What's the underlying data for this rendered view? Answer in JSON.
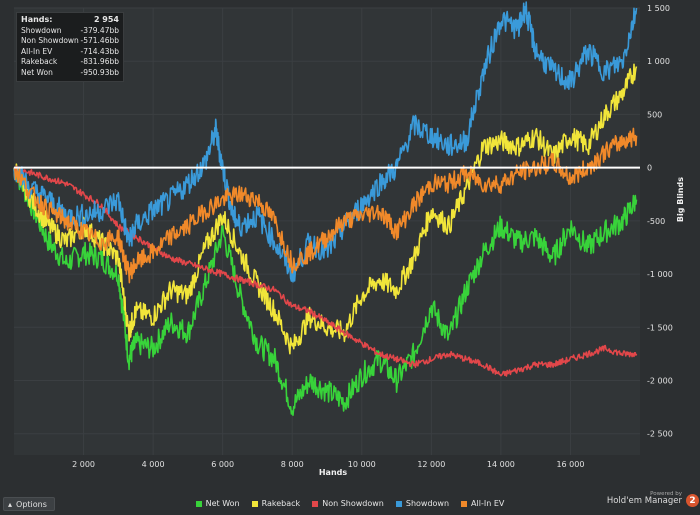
{
  "stats": {
    "hands_label": "Hands:",
    "hands_value": "2 954",
    "rows": [
      {
        "label": "Showdown",
        "value": "-379.47bb"
      },
      {
        "label": "Non Showdown",
        "value": "-571.46bb"
      },
      {
        "label": "All-In EV",
        "value": "-714.43bb"
      },
      {
        "label": "Rakeback",
        "value": "-831.96bb"
      },
      {
        "label": "Net Won",
        "value": "-950.93bb"
      }
    ]
  },
  "footer": {
    "options_label": "Options",
    "powered_by": "Powered by",
    "brand_name": "Hold'em Manager",
    "brand_logo_text": "2"
  },
  "chart_data": {
    "type": "line",
    "xlabel": "Hands",
    "ylabel": "Big Blinds",
    "xlim": [
      0,
      18000
    ],
    "ylim": [
      -2700,
      1500
    ],
    "x_ticks": [
      2000,
      4000,
      6000,
      8000,
      10000,
      12000,
      14000,
      16000
    ],
    "x_tick_labels": [
      "2 000",
      "4 000",
      "6 000",
      "8 000",
      "10 000",
      "12 000",
      "14 000",
      "16 000"
    ],
    "y_ticks": [
      1500,
      1000,
      500,
      0,
      -500,
      -1000,
      -1500,
      -2000,
      -2500
    ],
    "y_tick_labels": [
      "1 500",
      "1 000",
      "500",
      "0",
      "-500",
      "-1 000",
      "-1 500",
      "-2 000",
      "-2 500"
    ],
    "grid": true,
    "legend_position": "bottom",
    "colors": {
      "background": "#2c2f31",
      "grid": "#3b3f42",
      "zero_line": "#ffffff"
    },
    "series": [
      {
        "name": "Net Won",
        "color": "#38d33a",
        "x": [
          0,
          500,
          1000,
          1500,
          2000,
          2500,
          3000,
          3300,
          3500,
          4000,
          4500,
          5000,
          5500,
          6000,
          6500,
          7000,
          7500,
          8000,
          8500,
          9000,
          9500,
          10000,
          10500,
          11000,
          11500,
          12000,
          12500,
          13000,
          13500,
          14000,
          14500,
          15000,
          15500,
          16000,
          16500,
          17000,
          17500,
          17900
        ],
        "values": [
          0,
          -350,
          -700,
          -900,
          -800,
          -850,
          -1000,
          -1800,
          -1650,
          -1700,
          -1450,
          -1550,
          -1100,
          -600,
          -1200,
          -1650,
          -1800,
          -2250,
          -2000,
          -2100,
          -2200,
          -1950,
          -1800,
          -2000,
          -1750,
          -1300,
          -1600,
          -1150,
          -800,
          -550,
          -700,
          -650,
          -850,
          -550,
          -750,
          -600,
          -500,
          -300
        ]
      },
      {
        "name": "Rakeback",
        "color": "#f1e53a",
        "x": [
          0,
          500,
          1000,
          1500,
          2000,
          2500,
          3000,
          3300,
          3500,
          4000,
          4500,
          5000,
          5500,
          6000,
          6500,
          7000,
          7500,
          8000,
          8500,
          9000,
          9500,
          10000,
          10500,
          11000,
          11500,
          12000,
          12500,
          13000,
          13500,
          14000,
          14500,
          15000,
          15500,
          16000,
          16500,
          17000,
          17500,
          17900
        ],
        "values": [
          0,
          -300,
          -550,
          -700,
          -550,
          -700,
          -850,
          -1550,
          -1350,
          -1400,
          -1150,
          -1200,
          -750,
          -450,
          -800,
          -1100,
          -1350,
          -1700,
          -1400,
          -1500,
          -1550,
          -1200,
          -1050,
          -1150,
          -850,
          -400,
          -550,
          -200,
          200,
          250,
          200,
          300,
          100,
          300,
          200,
          500,
          700,
          950
        ]
      },
      {
        "name": "Non Showdown",
        "color": "#e2474a",
        "x": [
          0,
          500,
          1000,
          1500,
          2000,
          2500,
          3000,
          3500,
          4000,
          4500,
          5000,
          5500,
          6000,
          6500,
          7000,
          7500,
          8000,
          8500,
          9000,
          9500,
          10000,
          10500,
          11000,
          11500,
          12000,
          12500,
          13000,
          13500,
          14000,
          14500,
          15000,
          15500,
          16000,
          16500,
          17000,
          17500,
          17900
        ],
        "values": [
          0,
          -50,
          -100,
          -150,
          -250,
          -350,
          -550,
          -650,
          -750,
          -850,
          -900,
          -950,
          -1000,
          -1050,
          -1100,
          -1150,
          -1300,
          -1350,
          -1450,
          -1550,
          -1650,
          -1750,
          -1800,
          -1850,
          -1800,
          -1750,
          -1800,
          -1850,
          -1950,
          -1900,
          -1850,
          -1850,
          -1800,
          -1750,
          -1700,
          -1750,
          -1750
        ]
      },
      {
        "name": "Showdown",
        "color": "#3a9ad9",
        "x": [
          0,
          500,
          1000,
          1500,
          2000,
          2500,
          3000,
          3300,
          3500,
          4000,
          4500,
          5000,
          5500,
          5800,
          6000,
          6300,
          6500,
          7000,
          7500,
          8000,
          8500,
          9000,
          9500,
          10000,
          10500,
          11000,
          11500,
          12000,
          12500,
          13000,
          13500,
          14000,
          14500,
          14700,
          15000,
          15500,
          16000,
          16500,
          17000,
          17500,
          17900
        ],
        "values": [
          0,
          -200,
          -300,
          -450,
          -450,
          -400,
          -300,
          -700,
          -550,
          -400,
          -300,
          -150,
          50,
          350,
          0,
          -450,
          -550,
          -450,
          -700,
          -1000,
          -700,
          -800,
          -550,
          -350,
          -150,
          0,
          400,
          300,
          200,
          250,
          900,
          1400,
          1300,
          1500,
          1100,
          900,
          800,
          1100,
          900,
          1000,
          1500
        ]
      },
      {
        "name": "All-In EV",
        "color": "#f0892a",
        "x": [
          0,
          500,
          1000,
          1500,
          2000,
          2500,
          3000,
          3300,
          3500,
          4000,
          4500,
          5000,
          5500,
          6000,
          6500,
          7000,
          7500,
          8000,
          8500,
          9000,
          9500,
          10000,
          10500,
          11000,
          11500,
          12000,
          12500,
          13000,
          13500,
          14000,
          14500,
          15000,
          15500,
          16000,
          16500,
          17000,
          17500,
          17900
        ],
        "values": [
          0,
          -250,
          -400,
          -500,
          -600,
          -700,
          -650,
          -1000,
          -900,
          -800,
          -650,
          -550,
          -400,
          -300,
          -250,
          -300,
          -500,
          -900,
          -800,
          -650,
          -500,
          -450,
          -400,
          -600,
          -350,
          -150,
          -150,
          -50,
          -150,
          -150,
          -50,
          0,
          50,
          -100,
          0,
          150,
          250,
          300
        ]
      }
    ]
  }
}
